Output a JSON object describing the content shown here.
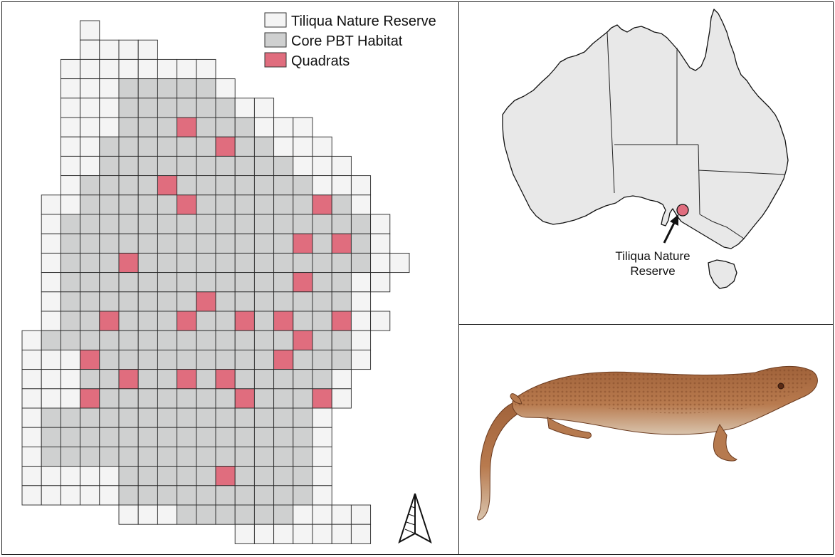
{
  "legend": {
    "items": [
      {
        "label": "Tiliqua Nature Reserve",
        "color": "#f4f4f4"
      },
      {
        "label": "Core PBT Habitat",
        "color": "#cfd0d0"
      },
      {
        "label": "Quadrats",
        "color": "#e06d7e"
      }
    ]
  },
  "inset_map": {
    "site_label_line1": "Tiliqua Nature",
    "site_label_line2": "Reserve",
    "land_color": "#e8e8e8",
    "marker_color": "#e06d7e"
  },
  "compass": {
    "icon": "north-arrow-icon"
  },
  "photo": {
    "subject": "lizard-icon"
  }
}
